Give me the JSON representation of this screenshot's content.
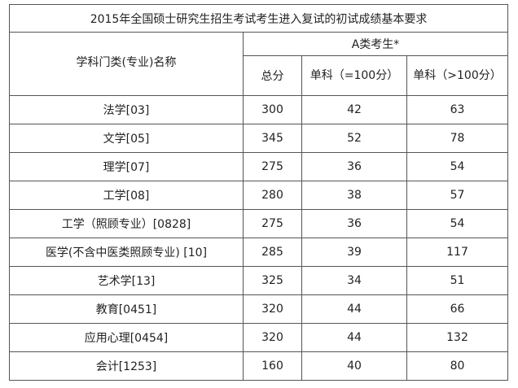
{
  "table": {
    "title": "2015年全国硕士研究生招生考试考生进入复试的初试成绩基本要求",
    "header": {
      "category_label": "学科门类(专业)名称",
      "group_label": "A类考生*",
      "total_label": "总分",
      "single_100_label": "单科（=100分）",
      "single_over_100_label": "单科（>100分）"
    },
    "rows": [
      {
        "name": "法学[03]",
        "total": "300",
        "single_100": "42",
        "single_over_100": "63"
      },
      {
        "name": "文学[05]",
        "total": "345",
        "single_100": "52",
        "single_over_100": "78"
      },
      {
        "name": "理学[07]",
        "total": "275",
        "single_100": "36",
        "single_over_100": "54"
      },
      {
        "name": "工学[08]",
        "total": "280",
        "single_100": "38",
        "single_over_100": "57"
      },
      {
        "name": "工学（照顾专业）[0828]",
        "total": "275",
        "single_100": "36",
        "single_over_100": "54"
      },
      {
        "name": "医学(不含中医类照顾专业) [10]",
        "total": "285",
        "single_100": "39",
        "single_over_100": "117"
      },
      {
        "name": "艺术学[13]",
        "total": "325",
        "single_100": "34",
        "single_over_100": "51"
      },
      {
        "name": "教育[0451]",
        "total": "320",
        "single_100": "44",
        "single_over_100": "66"
      },
      {
        "name": "应用心理[0454]",
        "total": "320",
        "single_100": "44",
        "single_over_100": "132"
      },
      {
        "name": "会计[1253]",
        "total": "160",
        "single_100": "40",
        "single_over_100": "80"
      }
    ]
  }
}
